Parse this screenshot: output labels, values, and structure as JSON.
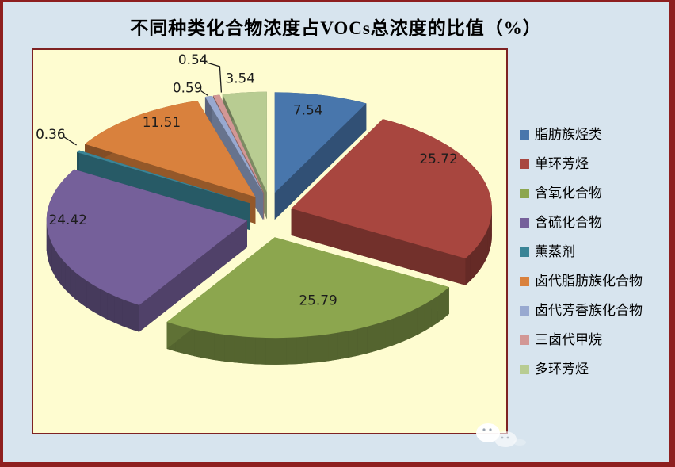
{
  "window": {
    "background": "#D7E4EE",
    "outer_border_color": "#8E1F1F"
  },
  "chart_data": {
    "type": "pie",
    "style": "3d-exploded-pie",
    "title": "不同种类化合物浓度占VOCs总浓度的比值（%）",
    "unit": "%",
    "legend_position": "right",
    "start_angle_deg": 0,
    "direction": "clockwise",
    "exploded": true,
    "plot_background": "#FEFCD0",
    "plot_border_color": "#7E2222",
    "label_color": "#1C1C1C",
    "categories": [
      "脂肪族烃类",
      "单环芳烃",
      "含氧化合物",
      "含硫化合物",
      "薰蒸剂",
      "卤代脂肪族化合物",
      "卤代芳香族化合物",
      "三卤代甲烷",
      "多环芳烃"
    ],
    "values": [
      7.54,
      25.72,
      25.79,
      24.42,
      0.36,
      11.51,
      0.59,
      0.54,
      3.54
    ],
    "colors": [
      "#4876AC",
      "#A8463F",
      "#8CA64E",
      "#75609A",
      "#3A8496",
      "#D9813D",
      "#98A9D0",
      "#D29795",
      "#B8CC92"
    ]
  }
}
